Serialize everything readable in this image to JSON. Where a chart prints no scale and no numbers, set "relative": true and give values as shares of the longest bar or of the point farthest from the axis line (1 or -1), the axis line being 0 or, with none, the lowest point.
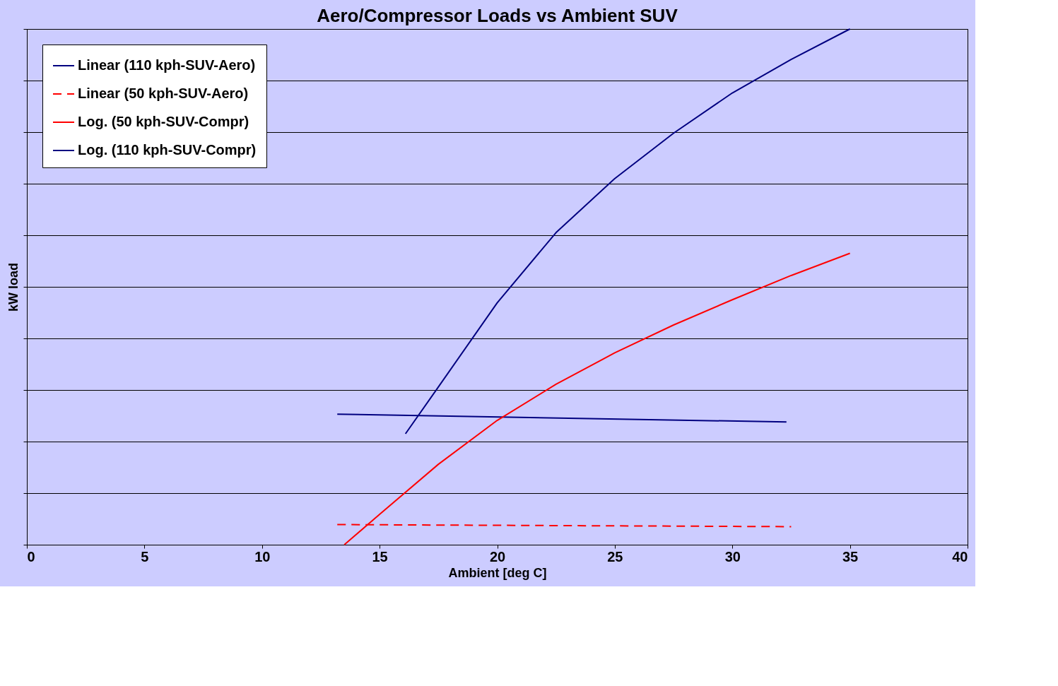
{
  "chart_data": {
    "type": "line",
    "title": "Aero/Compressor Loads vs Ambient SUV",
    "xlabel": "Ambient [deg C]",
    "ylabel": "kW load",
    "relative": true,
    "xlim": [
      0,
      40
    ],
    "xticks": [
      0,
      5,
      10,
      15,
      20,
      25,
      30,
      35,
      40
    ],
    "grid": "y",
    "legend": "top left",
    "marker": "none",
    "series": [
      {
        "name": "Linear (110 kph-SUV-Aero)",
        "color": "#000080",
        "line_style": "solid",
        "x": [
          13.2,
          32.3
        ],
        "values": [
          0.253,
          0.238
        ]
      },
      {
        "name": "Linear (50 kph-SUV-Aero)",
        "color": "#ff0000",
        "line_style": "dashed",
        "x": [
          13.2,
          32.5
        ],
        "values": [
          0.039,
          0.035
        ]
      },
      {
        "name": "Log. (50 kph-SUV-Compr)",
        "color": "#ff0000",
        "line_style": "solid",
        "x": [
          13.5,
          15,
          17.5,
          20,
          22.5,
          25,
          27.5,
          30,
          32.5,
          35
        ],
        "values": [
          0,
          0.059,
          0.156,
          0.241,
          0.311,
          0.372,
          0.426,
          0.475,
          0.522,
          0.565
        ]
      },
      {
        "name": "Log. (110 kph-SUV-Compr)",
        "color": "#000080",
        "line_style": "solid",
        "x": [
          16.1,
          17.5,
          20,
          22.5,
          25,
          27.5,
          30,
          32.5,
          35
        ],
        "values": [
          0.215,
          0.306,
          0.469,
          0.605,
          0.71,
          0.798,
          0.876,
          0.941,
          1
        ]
      }
    ]
  }
}
